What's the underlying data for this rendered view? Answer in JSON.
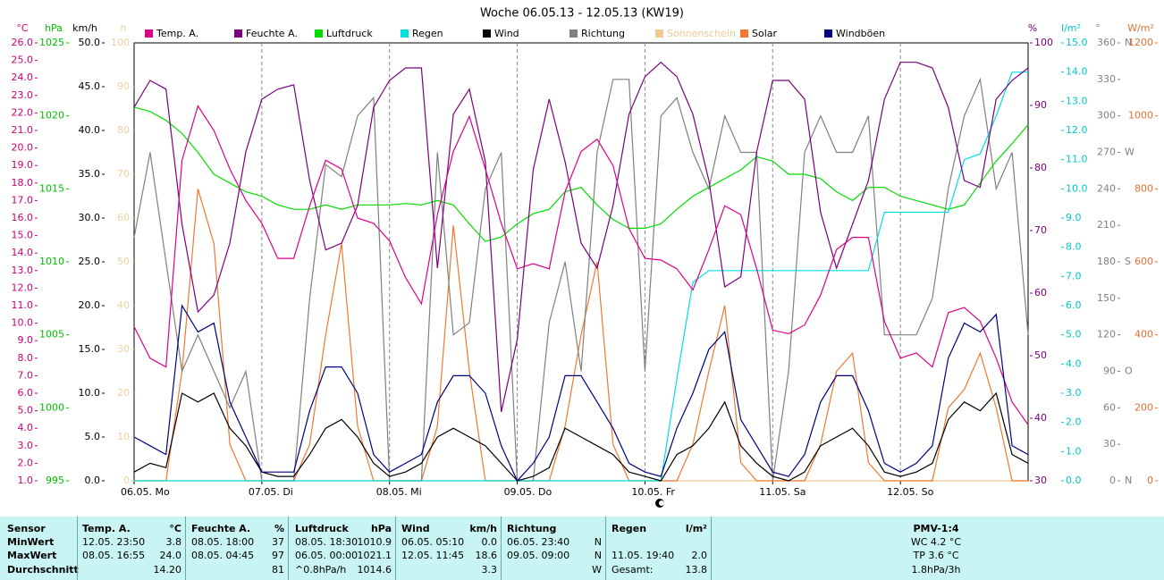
{
  "chart_data": {
    "type": "line",
    "title": "Woche 06.05.13 - 12.05.13 (KW19)",
    "grid": true,
    "xlim": [
      0,
      7
    ],
    "xticks": [
      {
        "value": 0,
        "label": "06.05. Mo"
      },
      {
        "value": 1,
        "label": "07.05. Di"
      },
      {
        "value": 2,
        "label": "08.05. Mi"
      },
      {
        "value": 3,
        "label": "09.05. Do"
      },
      {
        "value": 4,
        "label": "10.05. Fr"
      },
      {
        "value": 5,
        "label": "11.05. Sa"
      },
      {
        "value": 6,
        "label": "12.05. So"
      }
    ],
    "x": [
      0,
      0.125,
      0.25,
      0.375,
      0.5,
      0.625,
      0.75,
      0.875,
      1,
      1.125,
      1.25,
      1.375,
      1.5,
      1.625,
      1.75,
      1.875,
      2,
      2.125,
      2.25,
      2.375,
      2.5,
      2.625,
      2.75,
      2.875,
      3,
      3.125,
      3.25,
      3.375,
      3.5,
      3.625,
      3.75,
      3.875,
      4,
      4.125,
      4.25,
      4.375,
      4.5,
      4.625,
      4.75,
      4.875,
      5,
      5.125,
      5.25,
      5.375,
      5.5,
      5.625,
      5.75,
      5.875,
      6,
      6.125,
      6.25,
      6.375,
      6.5,
      6.625,
      6.75,
      6.875,
      7
    ],
    "axes": [
      {
        "unit": "°C",
        "color": "#cc0077",
        "lim": [
          1,
          26
        ],
        "ticks": [
          {
            "value": 1,
            "label": "1.0"
          },
          {
            "value": 2,
            "label": "2.0"
          },
          {
            "value": 3,
            "label": "3.0"
          },
          {
            "value": 4,
            "label": "4.0"
          },
          {
            "value": 5,
            "label": "5.0"
          },
          {
            "value": 6,
            "label": "6.0"
          },
          {
            "value": 7,
            "label": "7.0"
          },
          {
            "value": 8,
            "label": "8.0"
          },
          {
            "value": 9,
            "label": "9.0"
          },
          {
            "value": 10,
            "label": "10.0"
          },
          {
            "value": 11,
            "label": "11.0"
          },
          {
            "value": 12,
            "label": "12.0"
          },
          {
            "value": 13,
            "label": "13.0"
          },
          {
            "value": 14,
            "label": "14.0"
          },
          {
            "value": 15,
            "label": "15.0"
          },
          {
            "value": 16,
            "label": "16.0"
          },
          {
            "value": 17,
            "label": "17.0"
          },
          {
            "value": 18,
            "label": "18.0"
          },
          {
            "value": 19,
            "label": "19.0"
          },
          {
            "value": 20,
            "label": "20.0"
          },
          {
            "value": 21,
            "label": "21.0"
          },
          {
            "value": 22,
            "label": "22.0"
          },
          {
            "value": 23,
            "label": "23.0"
          },
          {
            "value": 24,
            "label": "24.0"
          },
          {
            "value": 25,
            "label": "25.0"
          },
          {
            "value": 26,
            "label": "26.0"
          }
        ]
      },
      {
        "unit": "hPa",
        "color": "#00c000",
        "lim": [
          995,
          1025
        ],
        "ticks": [
          995,
          1000,
          1005,
          1010,
          1015,
          1020,
          1025
        ]
      },
      {
        "unit": "km/h",
        "color": "#000000",
        "lim": [
          0,
          50
        ],
        "ticks": [
          {
            "value": 0,
            "label": "0.0"
          },
          {
            "value": 5,
            "label": "5.0"
          },
          {
            "value": 10,
            "label": "10.0"
          },
          {
            "value": 15,
            "label": "15.0"
          },
          {
            "value": 20,
            "label": "20.0"
          },
          {
            "value": 25,
            "label": "25.0"
          },
          {
            "value": 30,
            "label": "30.0"
          },
          {
            "value": 35,
            "label": "35.0"
          },
          {
            "value": 40,
            "label": "40.0"
          },
          {
            "value": 45,
            "label": "45.0"
          },
          {
            "value": 50,
            "label": "50.0"
          }
        ]
      },
      {
        "unit": "h",
        "color": "#f0d0a0",
        "lim": [
          0,
          100
        ],
        "ticks": [
          0,
          10,
          20,
          30,
          40,
          50,
          60,
          70,
          80,
          90,
          100
        ]
      },
      {
        "unit": "%",
        "color": "#800080",
        "lim": [
          30,
          100
        ],
        "ticks": [
          30,
          40,
          50,
          60,
          70,
          80,
          90,
          100
        ]
      },
      {
        "unit": "l/m²",
        "color": "#00c8c8",
        "lim": [
          0,
          15
        ],
        "ticks": [
          {
            "value": 0,
            "label": "0.0"
          },
          {
            "value": 1,
            "label": "1.0"
          },
          {
            "value": 2,
            "label": "2.0"
          },
          {
            "value": 3,
            "label": "3.0"
          },
          {
            "value": 4,
            "label": "4.0"
          },
          {
            "value": 5,
            "label": "5.0"
          },
          {
            "value": 6,
            "label": "6.0"
          },
          {
            "value": 7,
            "label": "7.0"
          },
          {
            "value": 8,
            "label": "8.0"
          },
          {
            "value": 9,
            "label": "9.0"
          },
          {
            "value": 10,
            "label": "10.0"
          },
          {
            "value": 11,
            "label": "11.0"
          },
          {
            "value": 12,
            "label": "12.0"
          },
          {
            "value": 13,
            "label": "13.0"
          },
          {
            "value": 14,
            "label": "14.0"
          },
          {
            "value": 15,
            "label": "15.0"
          }
        ]
      },
      {
        "unit": "°",
        "color": "#808080",
        "lim": [
          0,
          360
        ],
        "ticks": [
          0,
          30,
          60,
          90,
          120,
          150,
          180,
          210,
          240,
          270,
          300,
          330,
          360
        ],
        "compass": [
          {
            "value": 0,
            "label": "N"
          },
          {
            "value": 90,
            "label": "O"
          },
          {
            "value": 180,
            "label": "S"
          },
          {
            "value": 270,
            "label": "W"
          },
          {
            "value": 360,
            "label": "N"
          }
        ]
      },
      {
        "unit": "W/m²",
        "color": "#e07030",
        "lim": [
          0,
          1200
        ],
        "ticks": [
          0,
          200,
          400,
          600,
          800,
          1000,
          1200
        ]
      }
    ],
    "series": [
      {
        "name": "Sonnenschein",
        "color": "#f5c890",
        "axis": 3,
        "values": [
          0,
          0,
          0,
          0,
          0,
          0,
          0,
          0,
          0,
          0,
          0,
          0,
          0,
          0,
          0,
          0,
          0,
          0,
          0,
          0,
          0,
          0,
          0,
          0,
          0,
          0,
          0,
          0,
          0,
          0,
          0,
          0,
          0,
          0,
          0,
          0,
          0,
          0,
          0,
          0,
          0,
          0,
          0,
          0,
          0,
          0,
          0,
          0,
          0,
          0,
          0,
          0,
          0,
          0,
          0,
          0,
          0
        ]
      },
      {
        "name": "Solar",
        "color": "#f07830",
        "axis": 7,
        "values": [
          0,
          0,
          0,
          300,
          800,
          650,
          100,
          0,
          0,
          0,
          0,
          100,
          400,
          650,
          150,
          0,
          0,
          0,
          0,
          150,
          700,
          300,
          0,
          0,
          0,
          0,
          0,
          150,
          400,
          600,
          100,
          0,
          0,
          0,
          0,
          100,
          300,
          480,
          50,
          0,
          0,
          0,
          0,
          100,
          300,
          350,
          50,
          0,
          0,
          0,
          0,
          200,
          250,
          350,
          200,
          0,
          0
        ]
      },
      {
        "name": "Richtung",
        "color": "#808080",
        "axis": 6,
        "values": [
          200,
          270,
          180,
          90,
          120,
          90,
          60,
          90,
          0,
          0,
          0,
          150,
          260,
          250,
          300,
          315,
          0,
          0,
          0,
          270,
          120,
          130,
          240,
          270,
          0,
          0,
          130,
          180,
          90,
          270,
          330,
          330,
          90,
          300,
          315,
          270,
          240,
          300,
          270,
          270,
          0,
          90,
          270,
          300,
          270,
          270,
          300,
          120,
          120,
          120,
          150,
          240,
          300,
          330,
          240,
          270,
          120
        ]
      },
      {
        "name": "Luftdruck",
        "color": "#00dd00",
        "axis": 1,
        "values": [
          1020.6,
          1020.3,
          1019.7,
          1018.8,
          1017.5,
          1016,
          1015.4,
          1014.8,
          1014.5,
          1013.9,
          1013.6,
          1013.6,
          1013.9,
          1013.6,
          1013.9,
          1013.9,
          1013.9,
          1014,
          1013.9,
          1014.2,
          1013.9,
          1012.6,
          1011.4,
          1011.7,
          1012.6,
          1013.3,
          1013.6,
          1014.8,
          1015.1,
          1013.9,
          1012.9,
          1012.3,
          1012.3,
          1012.6,
          1013.6,
          1014.5,
          1015.1,
          1015.7,
          1016.3,
          1017.2,
          1016.9,
          1016,
          1016,
          1015.7,
          1014.8,
          1014.2,
          1015.1,
          1015.1,
          1014.5,
          1014.2,
          1013.9,
          1013.6,
          1013.9,
          1015.4,
          1016.9,
          1018.1,
          1019.4
        ]
      },
      {
        "name": "Regen",
        "color": "#00e0e0",
        "axis": 5,
        "values": [
          0,
          0,
          0,
          0,
          0,
          0,
          0,
          0,
          0,
          0,
          0,
          0,
          0,
          0,
          0,
          0,
          0,
          0,
          0,
          0,
          0,
          0,
          0,
          0,
          0,
          0,
          0,
          0,
          0,
          0,
          0,
          0,
          0,
          0,
          3.5,
          6.8,
          7.2,
          7.2,
          7.2,
          7.2,
          7.2,
          7.2,
          7.2,
          7.2,
          7.2,
          7.2,
          7.2,
          9.2,
          9.2,
          9.2,
          9.2,
          9.2,
          11,
          11.2,
          12.5,
          14,
          14
        ]
      },
      {
        "name": "Feuchte A.",
        "color": "#7b0080",
        "axis": 4,
        "values": [
          89.7,
          94,
          92.6,
          71,
          57,
          59.7,
          68,
          82.6,
          91,
          92.6,
          93.3,
          78,
          66.9,
          68,
          74,
          89.7,
          94,
          96,
          96,
          64,
          88.6,
          92.6,
          81,
          41,
          52.6,
          79.7,
          91,
          81,
          68,
          64,
          74,
          88.6,
          94.6,
          96.9,
          94.6,
          88.6,
          78,
          61,
          62.6,
          82.6,
          94,
          94,
          91,
          72.9,
          64,
          71,
          78,
          91,
          96.9,
          96.9,
          96,
          89.7,
          78,
          76.9,
          91,
          94,
          96
        ]
      },
      {
        "name": "Temp. A.",
        "color": "#dd0088",
        "axis": 0,
        "values": [
          9.8,
          8,
          7.5,
          19.3,
          22.4,
          21,
          18.8,
          17,
          15.7,
          13.7,
          13.7,
          16.7,
          19.3,
          18.8,
          16,
          15.7,
          14.7,
          12.6,
          11.1,
          16.2,
          19.8,
          21.8,
          18.8,
          15.7,
          13.1,
          13.4,
          13.1,
          17.5,
          19.8,
          20.5,
          19,
          15.4,
          13.7,
          13.6,
          13.1,
          11.9,
          14.2,
          16.7,
          16.2,
          13.1,
          9.6,
          9.4,
          9.9,
          11.6,
          14.2,
          14.9,
          14.9,
          10.1,
          8,
          8.3,
          7.5,
          10.6,
          10.9,
          10.1,
          8,
          5.5,
          4.2
        ]
      },
      {
        "name": "Wind",
        "color": "#000000",
        "axis": 2,
        "values": [
          1,
          2,
          1.5,
          10,
          9,
          10,
          6,
          4,
          1,
          0.5,
          0.5,
          3,
          6,
          7,
          5,
          2,
          0.5,
          1,
          2,
          5,
          6,
          5,
          4,
          2,
          0,
          0.5,
          1.5,
          6,
          5,
          4,
          3,
          1,
          0.5,
          0,
          3,
          4,
          6,
          9,
          4,
          2,
          0.5,
          0,
          1,
          4,
          5,
          6,
          4,
          1,
          0.5,
          1,
          2,
          7,
          9,
          8,
          10,
          3,
          2
        ]
      },
      {
        "name": "Windböen",
        "color": "#000080",
        "axis": 2,
        "values": [
          5,
          4,
          3,
          20,
          17,
          18,
          9,
          5,
          1,
          1,
          1,
          8,
          13,
          13,
          10,
          3,
          1,
          2,
          3,
          9,
          12,
          12,
          10,
          4,
          0,
          2,
          5,
          12,
          12,
          9,
          6,
          2,
          1,
          0.5,
          6,
          10,
          15,
          17,
          7,
          4,
          1,
          0.5,
          3,
          9,
          12,
          12,
          8,
          2,
          1,
          2,
          4,
          14,
          18,
          17,
          19,
          4,
          3
        ]
      }
    ],
    "legend_order": [
      6,
      5,
      3,
      4,
      7,
      2,
      0,
      1,
      8
    ]
  },
  "table": {
    "sensor_header": "Sensor",
    "row_labels": [
      "MinWert",
      "MaxWert",
      "Durchschnitt"
    ],
    "groups": [
      {
        "name": "Temp. A.",
        "unit": "°C",
        "rows": [
          [
            "12.05. 23:50",
            "3.8"
          ],
          [
            "08.05. 16:55",
            "24.0"
          ],
          [
            null,
            "14.20"
          ]
        ]
      },
      {
        "name": "Feuchte A.",
        "unit": "%",
        "rows": [
          [
            "08.05. 18:00",
            "37"
          ],
          [
            "08.05. 04:45",
            "97"
          ],
          [
            null,
            "81"
          ]
        ]
      },
      {
        "name": "Luftdruck",
        "unit": "hPa",
        "rows": [
          [
            "08.05. 18:30",
            "1010.9"
          ],
          [
            "06.05. 00:00",
            "1021.1"
          ],
          [
            "^0.8hPa/h",
            "1014.6"
          ]
        ]
      },
      {
        "name": "Wind",
        "unit": "km/h",
        "rows": [
          [
            "06.05. 05:10",
            "0.0"
          ],
          [
            "12.05. 11:45",
            "18.6"
          ],
          [
            null,
            "3.3"
          ]
        ]
      },
      {
        "name": "Richtung",
        "unit": null,
        "rows": [
          [
            "06.05. 23:40",
            "N"
          ],
          [
            "09.05. 09:00",
            "N"
          ],
          [
            null,
            "W"
          ]
        ]
      },
      {
        "name": "Regen",
        "unit": "l/m²",
        "rows": [
          [
            null,
            null
          ],
          [
            "11.05. 19:40",
            "2.0"
          ],
          [
            "Gesamt:",
            "13.8"
          ]
        ]
      }
    ],
    "pmv": {
      "name": "PMV-1:4",
      "lines": [
        "WC 4.2 °C",
        "TP 3.6 °C",
        "1.8hPa/3h"
      ]
    }
  }
}
